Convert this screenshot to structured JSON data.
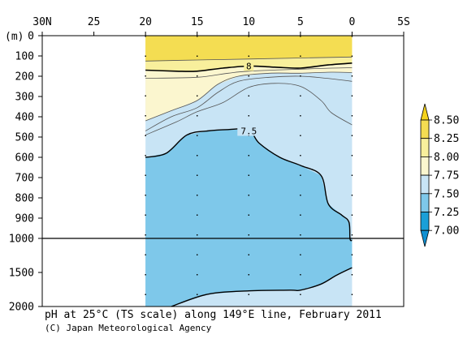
{
  "chart_data": {
    "type": "contour-section",
    "title": "pH at 25°C (TS scale) along 149°E line, February 2011",
    "credit": "(C) Japan Meteorological Agency",
    "x_axis": {
      "ticks": [
        {
          "value": 30,
          "label": "30N"
        },
        {
          "value": 25,
          "label": "25"
        },
        {
          "value": 20,
          "label": "20"
        },
        {
          "value": 15,
          "label": "15"
        },
        {
          "value": 10,
          "label": "10"
        },
        {
          "value": 5,
          "label": "5"
        },
        {
          "value": 0,
          "label": "0"
        },
        {
          "value": -5,
          "label": "5S"
        }
      ],
      "range": [
        30,
        -5
      ],
      "position": "top"
    },
    "y_axis": {
      "unit_label": "(m)",
      "upper_range": [
        0,
        1000
      ],
      "lower_range": [
        1000,
        2000
      ],
      "ticks": [
        {
          "value": 0,
          "label": "0"
        },
        {
          "value": 100,
          "label": "100"
        },
        {
          "value": 200,
          "label": "200"
        },
        {
          "value": 300,
          "label": "300"
        },
        {
          "value": 400,
          "label": "400"
        },
        {
          "value": 500,
          "label": "500"
        },
        {
          "value": 600,
          "label": "600"
        },
        {
          "value": 700,
          "label": "700"
        },
        {
          "value": 800,
          "label": "800"
        },
        {
          "value": 900,
          "label": "900"
        },
        {
          "value": 1000,
          "label": "1000"
        },
        {
          "value": 1500,
          "label": "1500"
        },
        {
          "value": 2000,
          "label": "2000"
        }
      ]
    },
    "station_latitudes": [
      20,
      15,
      10,
      5,
      0
    ],
    "data_lat_range": [
      20,
      0
    ],
    "colorbar": {
      "levels": [
        7.0,
        7.25,
        7.5,
        7.75,
        8.0,
        8.25,
        8.5
      ],
      "labels": [
        "7.00",
        "7.25",
        "7.50",
        "7.75",
        "8.00",
        "8.25",
        "8.50"
      ],
      "colors": [
        "#1a9fd8",
        "#7ec8ea",
        "#c8e4f5",
        "#fbf6cf",
        "#f8ef9c",
        "#f4dd52"
      ],
      "extend": "both"
    },
    "contour_labels": [
      {
        "value": "8",
        "lat": 10.0,
        "depth": 150
      },
      {
        "value": "7.5",
        "lat": 10.0,
        "depth": 470
      }
    ],
    "contours": {
      "c825": [
        [
          20,
          125
        ],
        [
          15,
          120
        ],
        [
          10,
          115
        ],
        [
          5,
          110
        ],
        [
          0,
          105
        ]
      ],
      "c8": [
        [
          20,
          170
        ],
        [
          17,
          175
        ],
        [
          15,
          175
        ],
        [
          12.5,
          160
        ],
        [
          10,
          150
        ],
        [
          7.5,
          155
        ],
        [
          5,
          160
        ],
        [
          2.5,
          145
        ],
        [
          0,
          135
        ]
      ],
      "c7875": [
        [
          20,
          210
        ],
        [
          15,
          205
        ],
        [
          12,
          185
        ],
        [
          10,
          175
        ],
        [
          5,
          165
        ],
        [
          2,
          160
        ],
        [
          0,
          158
        ]
      ],
      "c775": [
        [
          20,
          420
        ],
        [
          17.5,
          370
        ],
        [
          15,
          320
        ],
        [
          13,
          240
        ],
        [
          11,
          200
        ],
        [
          8,
          185
        ],
        [
          5,
          185
        ],
        [
          2,
          180
        ],
        [
          0,
          182
        ]
      ],
      "c7625": [
        [
          20,
          470
        ],
        [
          17.5,
          400
        ],
        [
          15,
          355
        ],
        [
          13,
          280
        ],
        [
          11,
          225
        ],
        [
          8,
          205
        ],
        [
          5,
          200
        ],
        [
          2.5,
          210
        ],
        [
          0,
          225
        ]
      ],
      "c76": [
        [
          20,
          490
        ],
        [
          17,
          425
        ],
        [
          15,
          375
        ],
        [
          12.5,
          330
        ],
        [
          10,
          255
        ],
        [
          7.5,
          235
        ],
        [
          5,
          250
        ],
        [
          3,
          320
        ],
        [
          2,
          380
        ],
        [
          0,
          440
        ]
      ],
      "c75": [
        [
          20,
          600
        ],
        [
          18,
          580
        ],
        [
          16,
          490
        ],
        [
          14,
          470
        ],
        [
          12,
          463
        ],
        [
          10,
          465
        ],
        [
          9,
          530
        ],
        [
          7,
          600
        ],
        [
          5,
          640
        ],
        [
          3,
          690
        ],
        [
          2.3,
          830
        ],
        [
          1,
          885
        ],
        [
          0.3,
          920
        ],
        [
          0.2,
          1005
        ],
        [
          0,
          1030
        ]
      ],
      "c75_deep": [
        [
          17.5,
          2000
        ],
        [
          14,
          1820
        ],
        [
          10,
          1770
        ],
        [
          6,
          1760
        ],
        [
          5,
          1760
        ],
        [
          3,
          1670
        ],
        [
          1.5,
          1540
        ],
        [
          0,
          1430
        ]
      ]
    }
  }
}
